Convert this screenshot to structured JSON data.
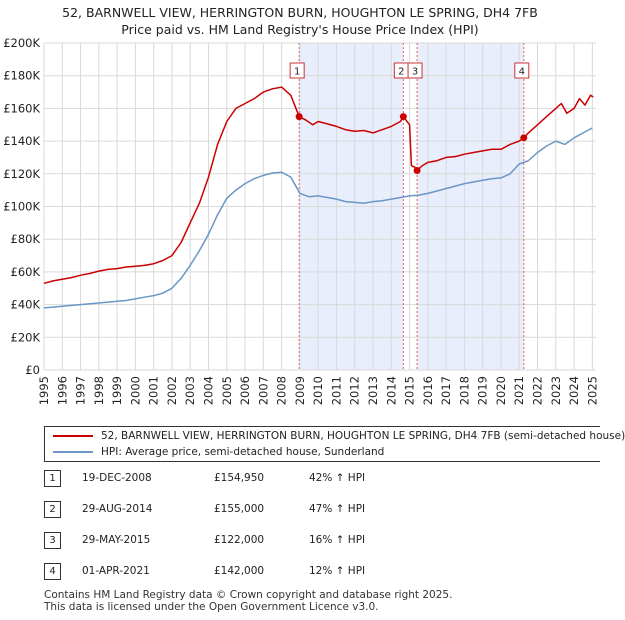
{
  "title_lines": [
    "52, BARNWELL VIEW, HERRINGTON BURN, HOUGHTON LE SPRING, DH4 7FB",
    "Price paid vs. HM Land Registry's House Price Index (HPI)"
  ],
  "colors": {
    "property": "#cc0000",
    "hpi": "#6a96c8",
    "shade": "#e8eefb",
    "marker_line": "#dd6666"
  },
  "chart_data": {
    "type": "line",
    "title": "52, BARNWELL VIEW, HERRINGTON BURN, HOUGHTON LE SPRING, DH4 7FB — Price paid vs. HM Land Registry's House Price Index (HPI)",
    "xlim": [
      1995,
      2025.2
    ],
    "ylim": [
      0,
      200000
    ],
    "y_ticks": [
      0,
      20000,
      40000,
      60000,
      80000,
      100000,
      120000,
      140000,
      160000,
      180000,
      200000
    ],
    "y_tick_labels": [
      "£0",
      "£20K",
      "£40K",
      "£60K",
      "£80K",
      "£100K",
      "£120K",
      "£140K",
      "£160K",
      "£180K",
      "£200K"
    ],
    "x_ticks": [
      "1995",
      "1996",
      "1997",
      "1998",
      "1999",
      "2000",
      "2001",
      "2002",
      "2003",
      "2004",
      "2005",
      "2006",
      "2007",
      "2008",
      "2009",
      "2010",
      "2011",
      "2012",
      "2013",
      "2014",
      "2015",
      "2016",
      "2017",
      "2018",
      "2019",
      "2020",
      "2021",
      "2022",
      "2023",
      "2024",
      "2025"
    ],
    "grid": true,
    "legend_position": "below",
    "series": [
      {
        "name": "52, BARNWELL VIEW, HERRINGTON BURN, HOUGHTON LE SPRING, DH4 7FB (semi-detached house)",
        "color": "#cc0000",
        "x": [
          1995.0,
          1995.5,
          1996.0,
          1996.5,
          1997.0,
          1997.5,
          1998.0,
          1998.5,
          1999.0,
          1999.5,
          2000.0,
          2000.5,
          2001.0,
          2001.5,
          2002.0,
          2002.5,
          2003.0,
          2003.5,
          2004.0,
          2004.5,
          2005.0,
          2005.5,
          2006.0,
          2006.5,
          2007.0,
          2007.5,
          2008.0,
          2008.5,
          2008.96,
          2009.3,
          2009.7,
          2010.0,
          2010.5,
          2011.0,
          2011.5,
          2012.0,
          2012.5,
          2013.0,
          2013.5,
          2014.0,
          2014.5,
          2014.66,
          2015.0,
          2015.1,
          2015.3,
          2015.41,
          2015.7,
          2016.0,
          2016.5,
          2017.0,
          2017.5,
          2018.0,
          2018.5,
          2019.0,
          2019.5,
          2020.0,
          2020.5,
          2021.0,
          2021.25,
          2021.5,
          2022.0,
          2022.5,
          2023.0,
          2023.3,
          2023.6,
          2024.0,
          2024.3,
          2024.6,
          2024.9,
          2025.05
        ],
        "y": [
          53000,
          54500,
          55500,
          56500,
          58000,
          59000,
          60500,
          61500,
          62000,
          63000,
          63500,
          64000,
          65000,
          67000,
          70000,
          78000,
          90000,
          102000,
          118000,
          138000,
          152000,
          160000,
          163000,
          166000,
          170000,
          172000,
          173000,
          168000,
          154950,
          153000,
          150000,
          152000,
          150500,
          149000,
          147000,
          146000,
          146500,
          145000,
          147000,
          149000,
          152000,
          155000,
          150000,
          125000,
          124000,
          122000,
          125000,
          127000,
          128000,
          130000,
          130500,
          132000,
          133000,
          134000,
          135000,
          135000,
          138000,
          140000,
          142000,
          145000,
          150000,
          155000,
          160000,
          163000,
          157000,
          160000,
          166000,
          162000,
          168000,
          167000
        ]
      },
      {
        "name": "HPI: Average price, semi-detached house, Sunderland",
        "color": "#6a96c8",
        "x": [
          1995.0,
          1995.5,
          1996.0,
          1996.5,
          1997.0,
          1997.5,
          1998.0,
          1998.5,
          1999.0,
          1999.5,
          2000.0,
          2000.5,
          2001.0,
          2001.5,
          2002.0,
          2002.5,
          2003.0,
          2003.5,
          2004.0,
          2004.5,
          2005.0,
          2005.5,
          2006.0,
          2006.5,
          2007.0,
          2007.5,
          2008.0,
          2008.5,
          2009.0,
          2009.5,
          2010.0,
          2010.5,
          2011.0,
          2011.5,
          2012.0,
          2012.5,
          2013.0,
          2013.5,
          2014.0,
          2014.5,
          2015.0,
          2015.5,
          2016.0,
          2016.5,
          2017.0,
          2017.5,
          2018.0,
          2018.5,
          2019.0,
          2019.5,
          2020.0,
          2020.5,
          2021.0,
          2021.5,
          2022.0,
          2022.5,
          2023.0,
          2023.5,
          2024.0,
          2024.5,
          2025.0
        ],
        "y": [
          38000,
          38500,
          39000,
          39500,
          40000,
          40500,
          41000,
          41500,
          42000,
          42500,
          43500,
          44500,
          45500,
          47000,
          50000,
          56000,
          64000,
          73000,
          83000,
          95000,
          105000,
          110000,
          114000,
          117000,
          119000,
          120500,
          121000,
          118000,
          108000,
          106000,
          106500,
          105500,
          104500,
          103000,
          102500,
          102000,
          103000,
          103500,
          104500,
          105500,
          106500,
          107000,
          108000,
          109500,
          111000,
          112500,
          114000,
          115000,
          116000,
          117000,
          117500,
          120000,
          126000,
          128000,
          133000,
          137000,
          140000,
          138000,
          142000,
          145000,
          148000
        ]
      }
    ],
    "transactions": [
      {
        "label": "1",
        "x": 2008.96,
        "y": 154950
      },
      {
        "label": "2",
        "x": 2014.66,
        "y": 155000
      },
      {
        "label": "3",
        "x": 2015.41,
        "y": 122000
      },
      {
        "label": "4",
        "x": 2021.25,
        "y": 142000
      }
    ],
    "shaded_ranges": [
      [
        2008.96,
        2014.66
      ],
      [
        2015.41,
        2021.25
      ]
    ]
  },
  "legend": [
    {
      "label": "52, BARNWELL VIEW, HERRINGTON BURN, HOUGHTON LE SPRING, DH4 7FB (semi-detached house)",
      "color": "#cc0000"
    },
    {
      "label": "HPI: Average price, semi-detached house, Sunderland",
      "color": "#6a96c8"
    }
  ],
  "table": [
    {
      "num": "1",
      "date": "19-DEC-2008",
      "price": "£154,950",
      "hpi": "42% ↑ HPI"
    },
    {
      "num": "2",
      "date": "29-AUG-2014",
      "price": "£155,000",
      "hpi": "47% ↑ HPI"
    },
    {
      "num": "3",
      "date": "29-MAY-2015",
      "price": "£122,000",
      "hpi": "16% ↑ HPI"
    },
    {
      "num": "4",
      "date": "01-APR-2021",
      "price": "£142,000",
      "hpi": "12% ↑ HPI"
    }
  ],
  "footer": [
    "Contains HM Land Registry data © Crown copyright and database right 2025.",
    "This data is licensed under the Open Government Licence v3.0."
  ]
}
